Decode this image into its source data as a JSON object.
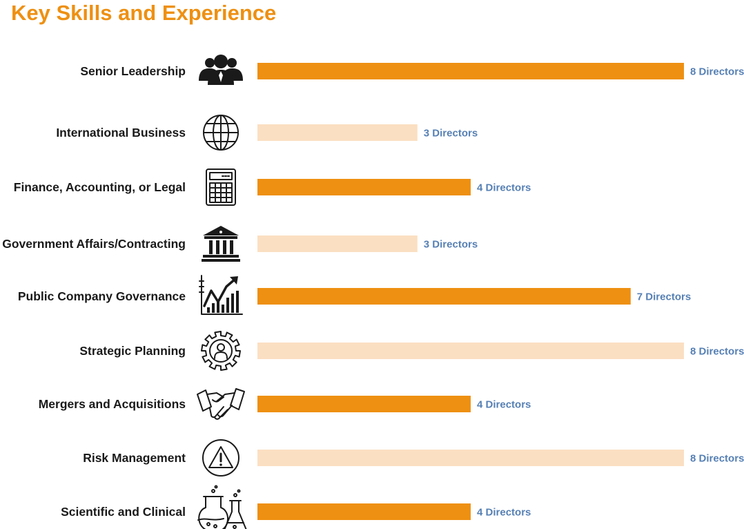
{
  "title": "Key Skills and Experience",
  "colors": {
    "title": "#ee9012",
    "bar_dark": "#ee9012",
    "bar_light": "#fbdfc2",
    "value_text": "#5680b4",
    "label_text": "#1a1a1a"
  },
  "chart_data": {
    "type": "bar",
    "orientation": "horizontal",
    "title": "Key Skills and Experience",
    "xlabel": "",
    "ylabel": "",
    "xlim": [
      0,
      8
    ],
    "grid": false,
    "legend": "none",
    "categories": [
      "Senior Leadership",
      "International Business",
      "Finance, Accounting, or Legal",
      "Government Affairs/Contracting",
      "Public Company Governance",
      "Strategic Planning",
      "Mergers and Acquisitions",
      "Risk Management",
      "Scientific and Clinical"
    ],
    "values": [
      8,
      3,
      4,
      3,
      7,
      8,
      4,
      8,
      4
    ],
    "value_labels": [
      "8 Directors",
      "3 Directors",
      "4 Directors",
      "3 Directors",
      "7 Directors",
      "8 Directors",
      "4 Directors",
      "8 Directors",
      "4 Directors"
    ],
    "bar_shade": [
      "dark",
      "light",
      "dark",
      "light",
      "dark",
      "light",
      "dark",
      "light",
      "dark"
    ],
    "icons": [
      "people-icon",
      "globe-icon",
      "calculator-icon",
      "government-building-icon",
      "growth-chart-icon",
      "gear-person-icon",
      "handshake-icon",
      "warning-icon",
      "lab-flasks-icon"
    ]
  }
}
